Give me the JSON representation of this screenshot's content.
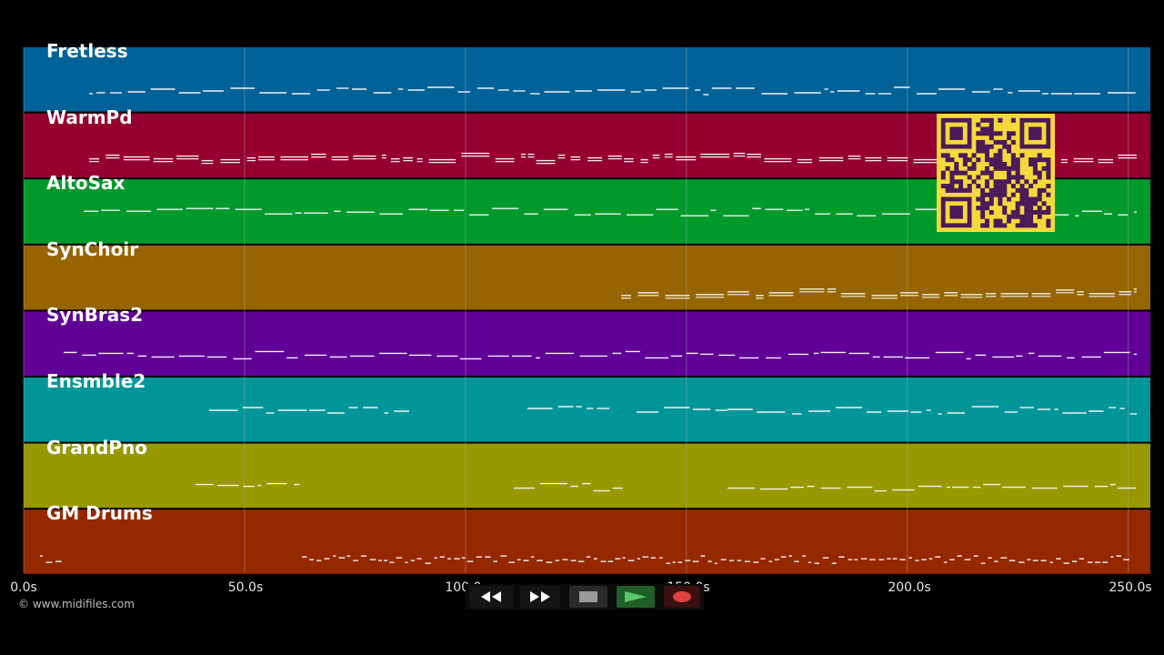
{
  "colors": {
    "background": "#000000",
    "grid": "#9fa7ad",
    "note": "#f2f2f2",
    "qr_bg": "#f5d93a",
    "qr_fg": "#4a1a5a"
  },
  "timeline": {
    "max_seconds": 255,
    "tick_labels": [
      {
        "t": 0,
        "label": "0.0s"
      },
      {
        "t": 50,
        "label": "50.0s"
      },
      {
        "t": 100,
        "label": "100.0s"
      },
      {
        "t": 150,
        "label": "150.0s"
      },
      {
        "t": 200,
        "label": "200.0s"
      },
      {
        "t": 250,
        "label": "250.0s"
      }
    ]
  },
  "tracks": [
    {
      "name": "Fretless",
      "color": "#006298"
    },
    {
      "name": "WarmPd",
      "color": "#960030"
    },
    {
      "name": "AltoSax",
      "color": "#009a2b"
    },
    {
      "name": "SynChoir",
      "color": "#966400"
    },
    {
      "name": "SynBras2",
      "color": "#600096"
    },
    {
      "name": "Ensmble2",
      "color": "#009699"
    },
    {
      "name": "GrandPno",
      "color": "#989800"
    },
    {
      "name": "GM Drums",
      "color": "#962800"
    }
  ],
  "copyright": "© www.midifiles.com",
  "transport": {
    "rewind_icon": "rewind-icon",
    "fast_forward_icon": "fast-forward-icon",
    "stop_icon": "stop-icon",
    "play_icon": "play-icon",
    "record_icon": "record-icon"
  },
  "qr_code": "qr-code-icon"
}
